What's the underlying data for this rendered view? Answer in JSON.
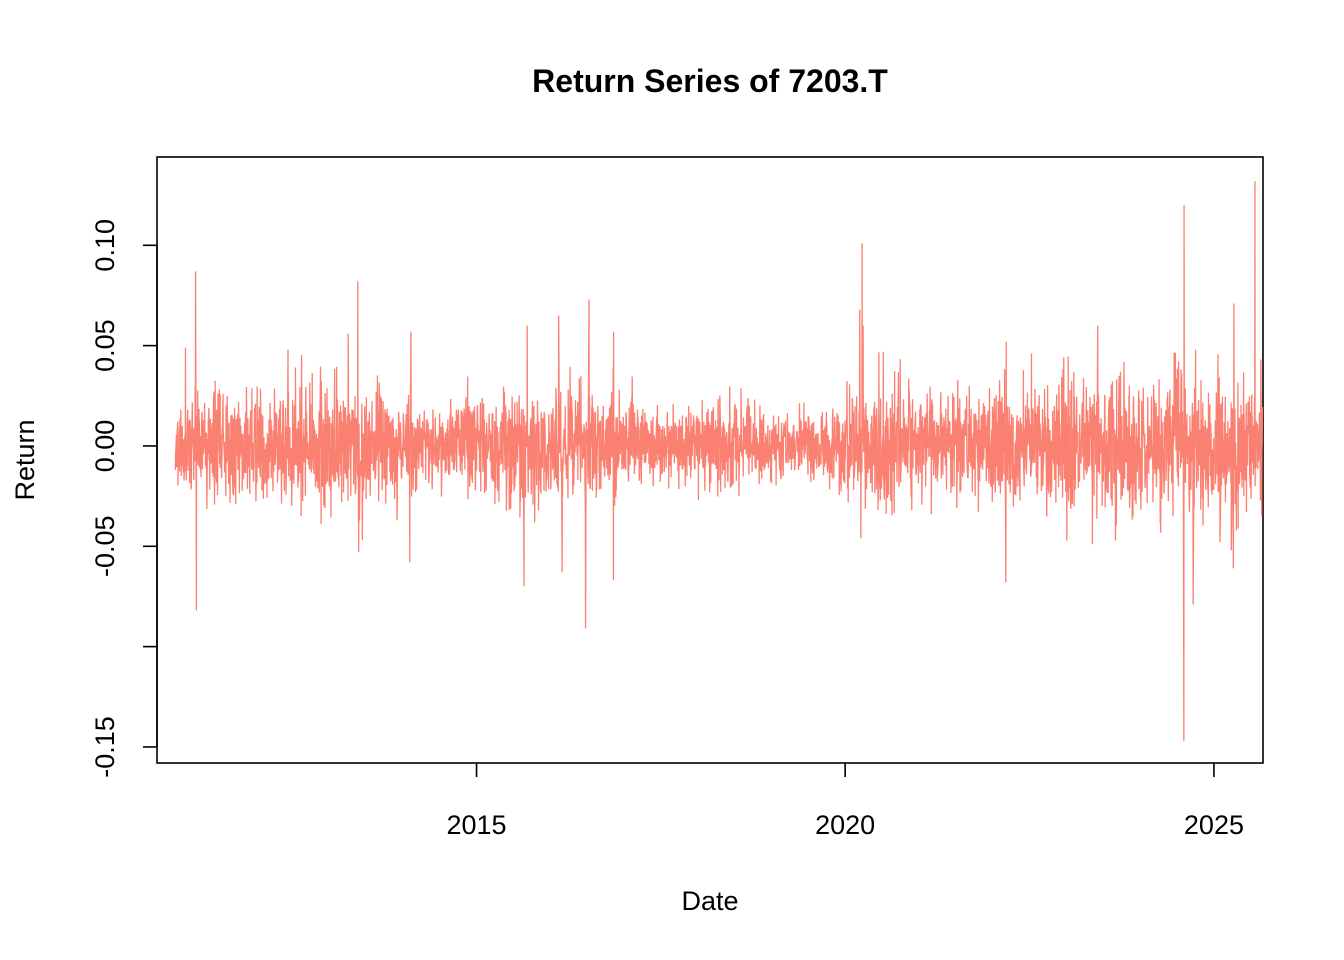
{
  "chart_data": {
    "type": "line",
    "title": "Return Series of 7203.T",
    "xlabel": "Date",
    "ylabel": "Return",
    "x_range": [
      "2010-09-01",
      "2025-09-01"
    ],
    "x_ticks": [
      {
        "date": "2015-01-01",
        "label": "2015"
      },
      {
        "date": "2020-01-01",
        "label": "2020"
      },
      {
        "date": "2025-01-01",
        "label": "2025"
      }
    ],
    "ylim": [
      -0.158,
      0.144
    ],
    "y_ticks": [
      {
        "value": 0.1,
        "label": "0.10"
      },
      {
        "value": 0.05,
        "label": "0.05"
      },
      {
        "value": 0.0,
        "label": "0.00"
      },
      {
        "value": -0.05,
        "label": "-0.05"
      },
      {
        "value": -0.1,
        "label": ""
      },
      {
        "value": -0.15,
        "label": "-0.15"
      }
    ],
    "grid": false,
    "legend": "none",
    "series": [
      {
        "color": "#FA8072",
        "base_volatility": [
          {
            "date": "2010-12-01",
            "sd": 0.012
          },
          {
            "date": "2011-06-01",
            "sd": 0.013
          },
          {
            "date": "2012-06-01",
            "sd": 0.014
          },
          {
            "date": "2013-06-01",
            "sd": 0.016
          },
          {
            "date": "2014-06-01",
            "sd": 0.01
          },
          {
            "date": "2015-06-01",
            "sd": 0.013
          },
          {
            "date": "2016-06-01",
            "sd": 0.016
          },
          {
            "date": "2017-06-01",
            "sd": 0.008
          },
          {
            "date": "2018-06-01",
            "sd": 0.012
          },
          {
            "date": "2019-06-01",
            "sd": 0.008
          },
          {
            "date": "2020-06-01",
            "sd": 0.015
          },
          {
            "date": "2021-06-01",
            "sd": 0.013
          },
          {
            "date": "2022-06-01",
            "sd": 0.015
          },
          {
            "date": "2023-06-01",
            "sd": 0.017
          },
          {
            "date": "2024-06-01",
            "sd": 0.018
          },
          {
            "date": "2025-08-31",
            "sd": 0.016
          }
        ],
        "extremes": [
          {
            "date": "2011-03-11",
            "value": 0.087
          },
          {
            "date": "2011-03-15",
            "value": -0.082
          },
          {
            "date": "2011-01-20",
            "value": 0.049
          },
          {
            "date": "2012-06-10",
            "value": 0.048
          },
          {
            "date": "2013-05-23",
            "value": 0.082
          },
          {
            "date": "2013-05-27",
            "value": -0.053
          },
          {
            "date": "2013-06-15",
            "value": -0.047
          },
          {
            "date": "2013-04-05",
            "value": 0.056
          },
          {
            "date": "2014-02-04",
            "value": -0.058
          },
          {
            "date": "2014-02-10",
            "value": 0.057
          },
          {
            "date": "2015-08-24",
            "value": -0.07
          },
          {
            "date": "2015-09-09",
            "value": 0.06
          },
          {
            "date": "2016-02-12",
            "value": 0.065
          },
          {
            "date": "2016-02-29",
            "value": -0.063
          },
          {
            "date": "2016-06-24",
            "value": -0.091
          },
          {
            "date": "2016-07-11",
            "value": 0.073
          },
          {
            "date": "2016-11-09",
            "value": -0.067
          },
          {
            "date": "2016-11-10",
            "value": 0.057
          },
          {
            "date": "2020-03-13",
            "value": 0.068
          },
          {
            "date": "2020-03-19",
            "value": -0.046
          },
          {
            "date": "2020-03-25",
            "value": 0.101
          },
          {
            "date": "2020-03-30",
            "value": 0.06
          },
          {
            "date": "2022-03-07",
            "value": -0.068
          },
          {
            "date": "2022-03-09",
            "value": 0.052
          },
          {
            "date": "2023-06-05",
            "value": 0.06
          },
          {
            "date": "2023-05-10",
            "value": -0.049
          },
          {
            "date": "2024-08-05",
            "value": -0.147
          },
          {
            "date": "2024-08-06",
            "value": 0.12
          },
          {
            "date": "2024-09-20",
            "value": -0.079
          },
          {
            "date": "2024-10-02",
            "value": 0.048
          },
          {
            "date": "2025-04-07",
            "value": -0.061
          },
          {
            "date": "2025-04-10",
            "value": 0.071
          },
          {
            "date": "2025-07-23",
            "value": 0.132
          },
          {
            "date": "2025-03-28",
            "value": -0.052
          }
        ]
      }
    ]
  }
}
